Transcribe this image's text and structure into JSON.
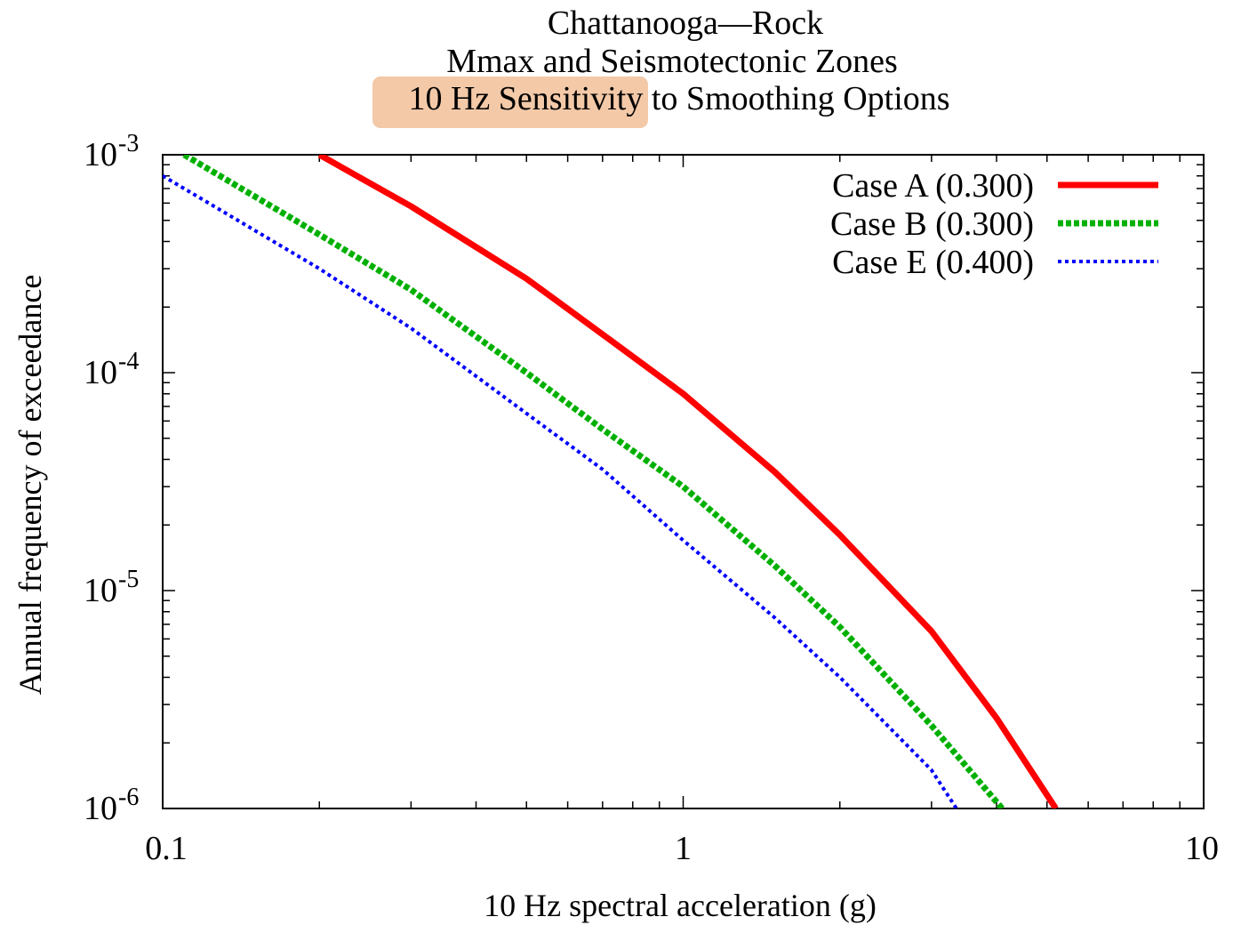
{
  "chart_data": {
    "type": "line",
    "title_lines": [
      "Chattanooga—Rock",
      "Mmax and Seismotectonic Zones"
    ],
    "title_highlight": "10 Hz Sensitivity",
    "title_rest": " to Smoothing Options",
    "highlight_color": "#f3c9a8",
    "xlabel": "10 Hz spectral acceleration (g)",
    "ylabel": "Annual frequency of exceedance",
    "x_scale": "log",
    "y_scale": "log",
    "xlim": [
      0.1,
      10
    ],
    "ylim": [
      1e-06,
      0.001
    ],
    "x_ticks": [
      {
        "value": 0.1,
        "label": "0.1"
      },
      {
        "value": 1,
        "label": "1"
      },
      {
        "value": 10,
        "label": "10"
      }
    ],
    "y_ticks": [
      {
        "value": 0.001,
        "base": "10",
        "exp": "-3"
      },
      {
        "value": 0.0001,
        "base": "10",
        "exp": "-4"
      },
      {
        "value": 1e-05,
        "base": "10",
        "exp": "-5"
      },
      {
        "value": 1e-06,
        "base": "10",
        "exp": "-6"
      }
    ],
    "grid": false,
    "legend_position": "top-right",
    "series": [
      {
        "name": "Case A (0.300)",
        "color": "#ff0000",
        "style": "solid",
        "x": [
          0.2,
          0.3,
          0.5,
          0.7,
          1.0,
          1.5,
          2.0,
          3.0,
          4.0,
          5.2
        ],
        "y": [
          0.001,
          0.00058,
          0.00027,
          0.00015,
          8e-05,
          3.5e-05,
          1.8e-05,
          6.5e-06,
          2.6e-06,
          1e-06
        ]
      },
      {
        "name": "Case B (0.300)",
        "color": "#00b000",
        "style": "dashed",
        "x": [
          0.11,
          0.2,
          0.3,
          0.5,
          0.7,
          1.0,
          1.5,
          2.0,
          3.0,
          4.1
        ],
        "y": [
          0.001,
          0.00043,
          0.00024,
          0.0001,
          5.5e-05,
          3e-05,
          1.3e-05,
          6.8e-06,
          2.4e-06,
          1e-06
        ]
      },
      {
        "name": "Case E (0.400)",
        "color": "#0000ff",
        "style": "dotted",
        "x": [
          0.1,
          0.2,
          0.3,
          0.5,
          0.7,
          1.0,
          1.5,
          2.0,
          3.0,
          3.35
        ],
        "y": [
          0.0008,
          0.0003,
          0.00016,
          6.5e-05,
          3.6e-05,
          1.7e-05,
          7.5e-06,
          4e-06,
          1.5e-06,
          1e-06
        ]
      }
    ]
  }
}
